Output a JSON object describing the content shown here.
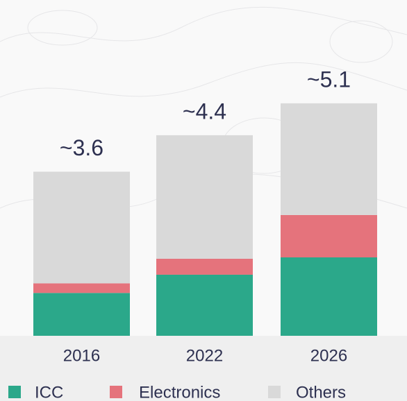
{
  "chart_data": {
    "type": "stacked_bar",
    "categories": [
      "2016",
      "2022",
      "2026"
    ],
    "series": [
      {
        "name": "ICC",
        "color": "#2ba88a",
        "values": [
          0.94,
          1.34,
          1.72
        ]
      },
      {
        "name": "Electronics",
        "color": "#e5737c",
        "values": [
          0.21,
          0.35,
          0.93
        ]
      },
      {
        "name": "Others",
        "color": "#d9d9d9",
        "values": [
          2.45,
          2.71,
          2.45
        ]
      }
    ],
    "totals": [
      3.6,
      4.4,
      5.1
    ],
    "total_labels": [
      "~3.6",
      "~4.4",
      "~5.1"
    ]
  }
}
